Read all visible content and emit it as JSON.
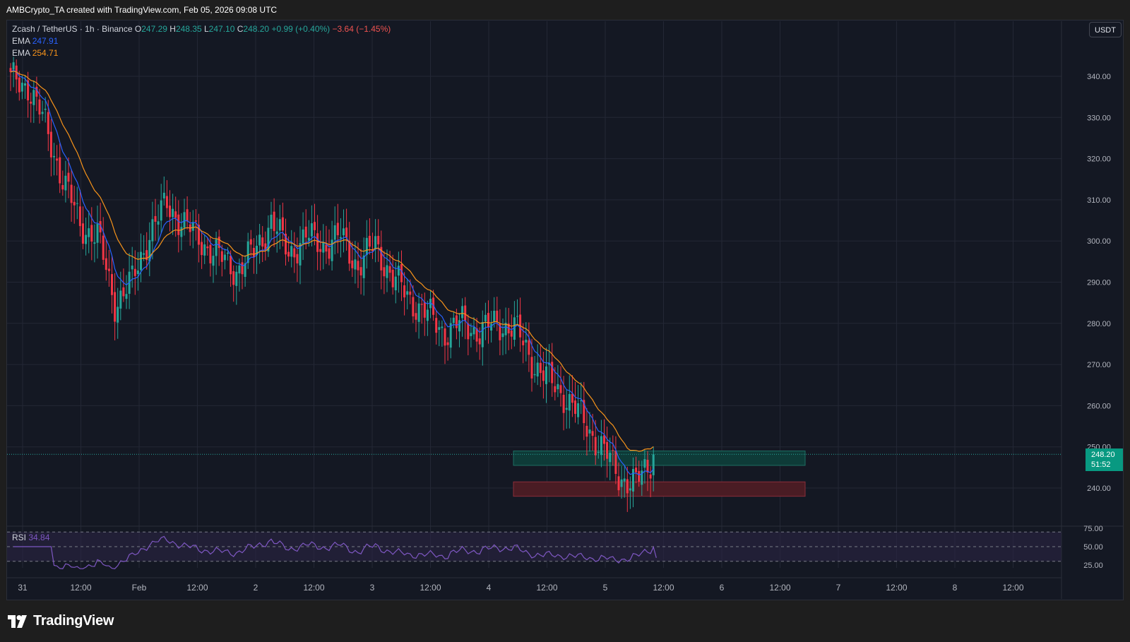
{
  "header": {
    "credit": "AMBCrypto_TA created with TradingView.com, Feb 05, 2026 09:08 UTC"
  },
  "legend": {
    "symbol": "Zcash / TetherUS · 1h · Binance",
    "open_key": "O",
    "open": "247.29",
    "high_key": "H",
    "high": "248.35",
    "low_key": "L",
    "low": "247.10",
    "close_key": "C",
    "close": "248.20",
    "change": "+0.99 (+0.40%)",
    "change2": "−3.64 (−1.45%)",
    "ema1_label": "EMA",
    "ema1_value": "247.91",
    "ema2_label": "EMA",
    "ema2_value": "254.71"
  },
  "currency_button": "USDT",
  "last_price": {
    "price": "248.20",
    "countdown": "51:52"
  },
  "rsi": {
    "label": "RSI",
    "value": "34.84"
  },
  "brand": {
    "name": "TradingView"
  },
  "colors": {
    "background": "#141823",
    "grid": "#232735",
    "up": "#26a69a",
    "down": "#f23645",
    "ema_fast": "#2962ff",
    "ema_slow": "#f7931a",
    "rsi_line": "#7e57c2",
    "demand_zone": "#0e3b38",
    "support_zone": "#4a1c24"
  },
  "chart_data": {
    "type": "candlestick",
    "title": "Zcash / TetherUS · 1h · Binance",
    "x_ticks": [
      "31",
      "12:00",
      "Feb",
      "12:00",
      "2",
      "12:00",
      "3",
      "12:00",
      "4",
      "12:00",
      "5",
      "12:00",
      "6",
      "12:00",
      "7",
      "12:00",
      "8",
      "12:00"
    ],
    "y_ticks": [
      "340.00",
      "330.00",
      "320.00",
      "310.00",
      "300.00",
      "290.00",
      "280.00",
      "270.00",
      "260.00",
      "250.00",
      "240.00"
    ],
    "ylim": [
      232,
      350
    ],
    "rsi_ticks": [
      "75.00",
      "50.00",
      "25.00"
    ],
    "rsi_levels": [
      70,
      50,
      30
    ],
    "series": [
      {
        "name": "Zcash / TetherUS",
        "kind": "candles",
        "ohlc_anchor_closes": [
          [
            0,
            339
          ],
          [
            6,
            338
          ],
          [
            12,
            328
          ],
          [
            18,
            315
          ],
          [
            24,
            304
          ],
          [
            30,
            301
          ],
          [
            36,
            285
          ],
          [
            42,
            290
          ],
          [
            48,
            302
          ],
          [
            54,
            309
          ],
          [
            60,
            304
          ],
          [
            66,
            300
          ],
          [
            72,
            296
          ],
          [
            78,
            293
          ],
          [
            84,
            297
          ],
          [
            90,
            305
          ],
          [
            96,
            297
          ],
          [
            102,
            301
          ],
          [
            108,
            299
          ],
          [
            114,
            301
          ],
          [
            120,
            294
          ],
          [
            126,
            299
          ],
          [
            132,
            291
          ],
          [
            138,
            286
          ],
          [
            144,
            282
          ],
          [
            150,
            278
          ],
          [
            156,
            280
          ],
          [
            162,
            278
          ],
          [
            168,
            280
          ],
          [
            174,
            279
          ],
          [
            180,
            271
          ],
          [
            186,
            266
          ],
          [
            192,
            262
          ],
          [
            198,
            256
          ],
          [
            204,
            250
          ],
          [
            210,
            243
          ],
          [
            216,
            241
          ],
          [
            220,
            245
          ],
          [
            222,
            248.2
          ]
        ]
      },
      {
        "name": "EMA",
        "value": 247.91
      },
      {
        "name": "EMA",
        "value": 254.71
      }
    ],
    "zones": [
      {
        "kind": "demand",
        "from": 245.5,
        "to": 249.0
      },
      {
        "kind": "support",
        "from": 238.0,
        "to": 241.5
      }
    ]
  }
}
